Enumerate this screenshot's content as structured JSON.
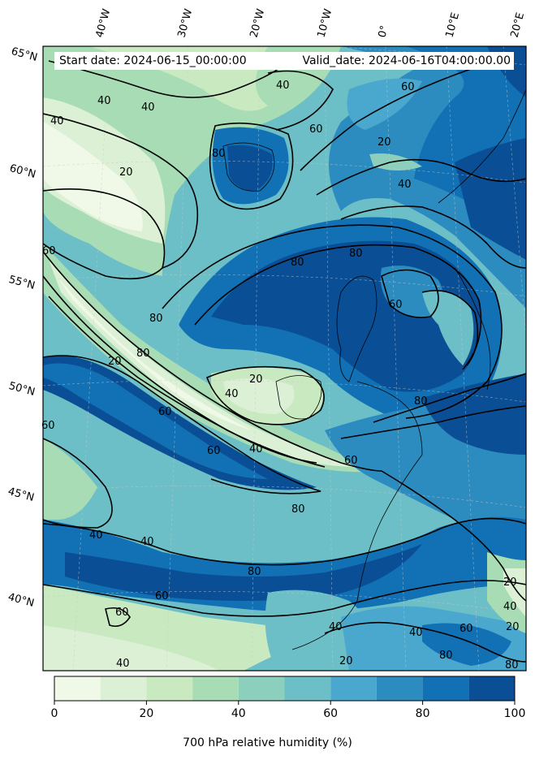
{
  "header": {
    "start_date": "Start date: 2024-06-15_00:00:00",
    "valid_date": "Valid_date: 2024-06-16T04:00:00.00"
  },
  "lon_labels": [
    "40°W",
    "30°W",
    "20°W",
    "10°W",
    "0°",
    "10°E",
    "20°E"
  ],
  "lat_labels": [
    "65°N",
    "60°N",
    "55°N",
    "50°N",
    "45°N",
    "40°N"
  ],
  "contour_labels": [
    "40",
    "40",
    "40",
    "40",
    "60",
    "60",
    "80",
    "20",
    "40",
    "20",
    "80",
    "80",
    "60",
    "80",
    "20",
    "80",
    "60",
    "60",
    "40",
    "20",
    "60",
    "80",
    "40",
    "80",
    "60",
    "40",
    "40",
    "60",
    "80",
    "60",
    "60",
    "40",
    "20",
    "20",
    "40",
    "60",
    "20",
    "80",
    "80",
    "40",
    "40"
  ],
  "colorbar": {
    "ticks": [
      "0",
      "20",
      "40",
      "60",
      "80",
      "100"
    ],
    "label": "700 hPa relative humidity (%)",
    "levels": [
      0,
      10,
      20,
      30,
      40,
      50,
      60,
      70,
      80,
      90,
      100
    ],
    "colors": [
      "#f0f9e8",
      "#dcf0d6",
      "#c9eac0",
      "#a8dcb5",
      "#8ccfbd",
      "#6cbfc6",
      "#4aa8cf",
      "#2c8cc0",
      "#1171b4",
      "#0a4f96"
    ]
  }
}
